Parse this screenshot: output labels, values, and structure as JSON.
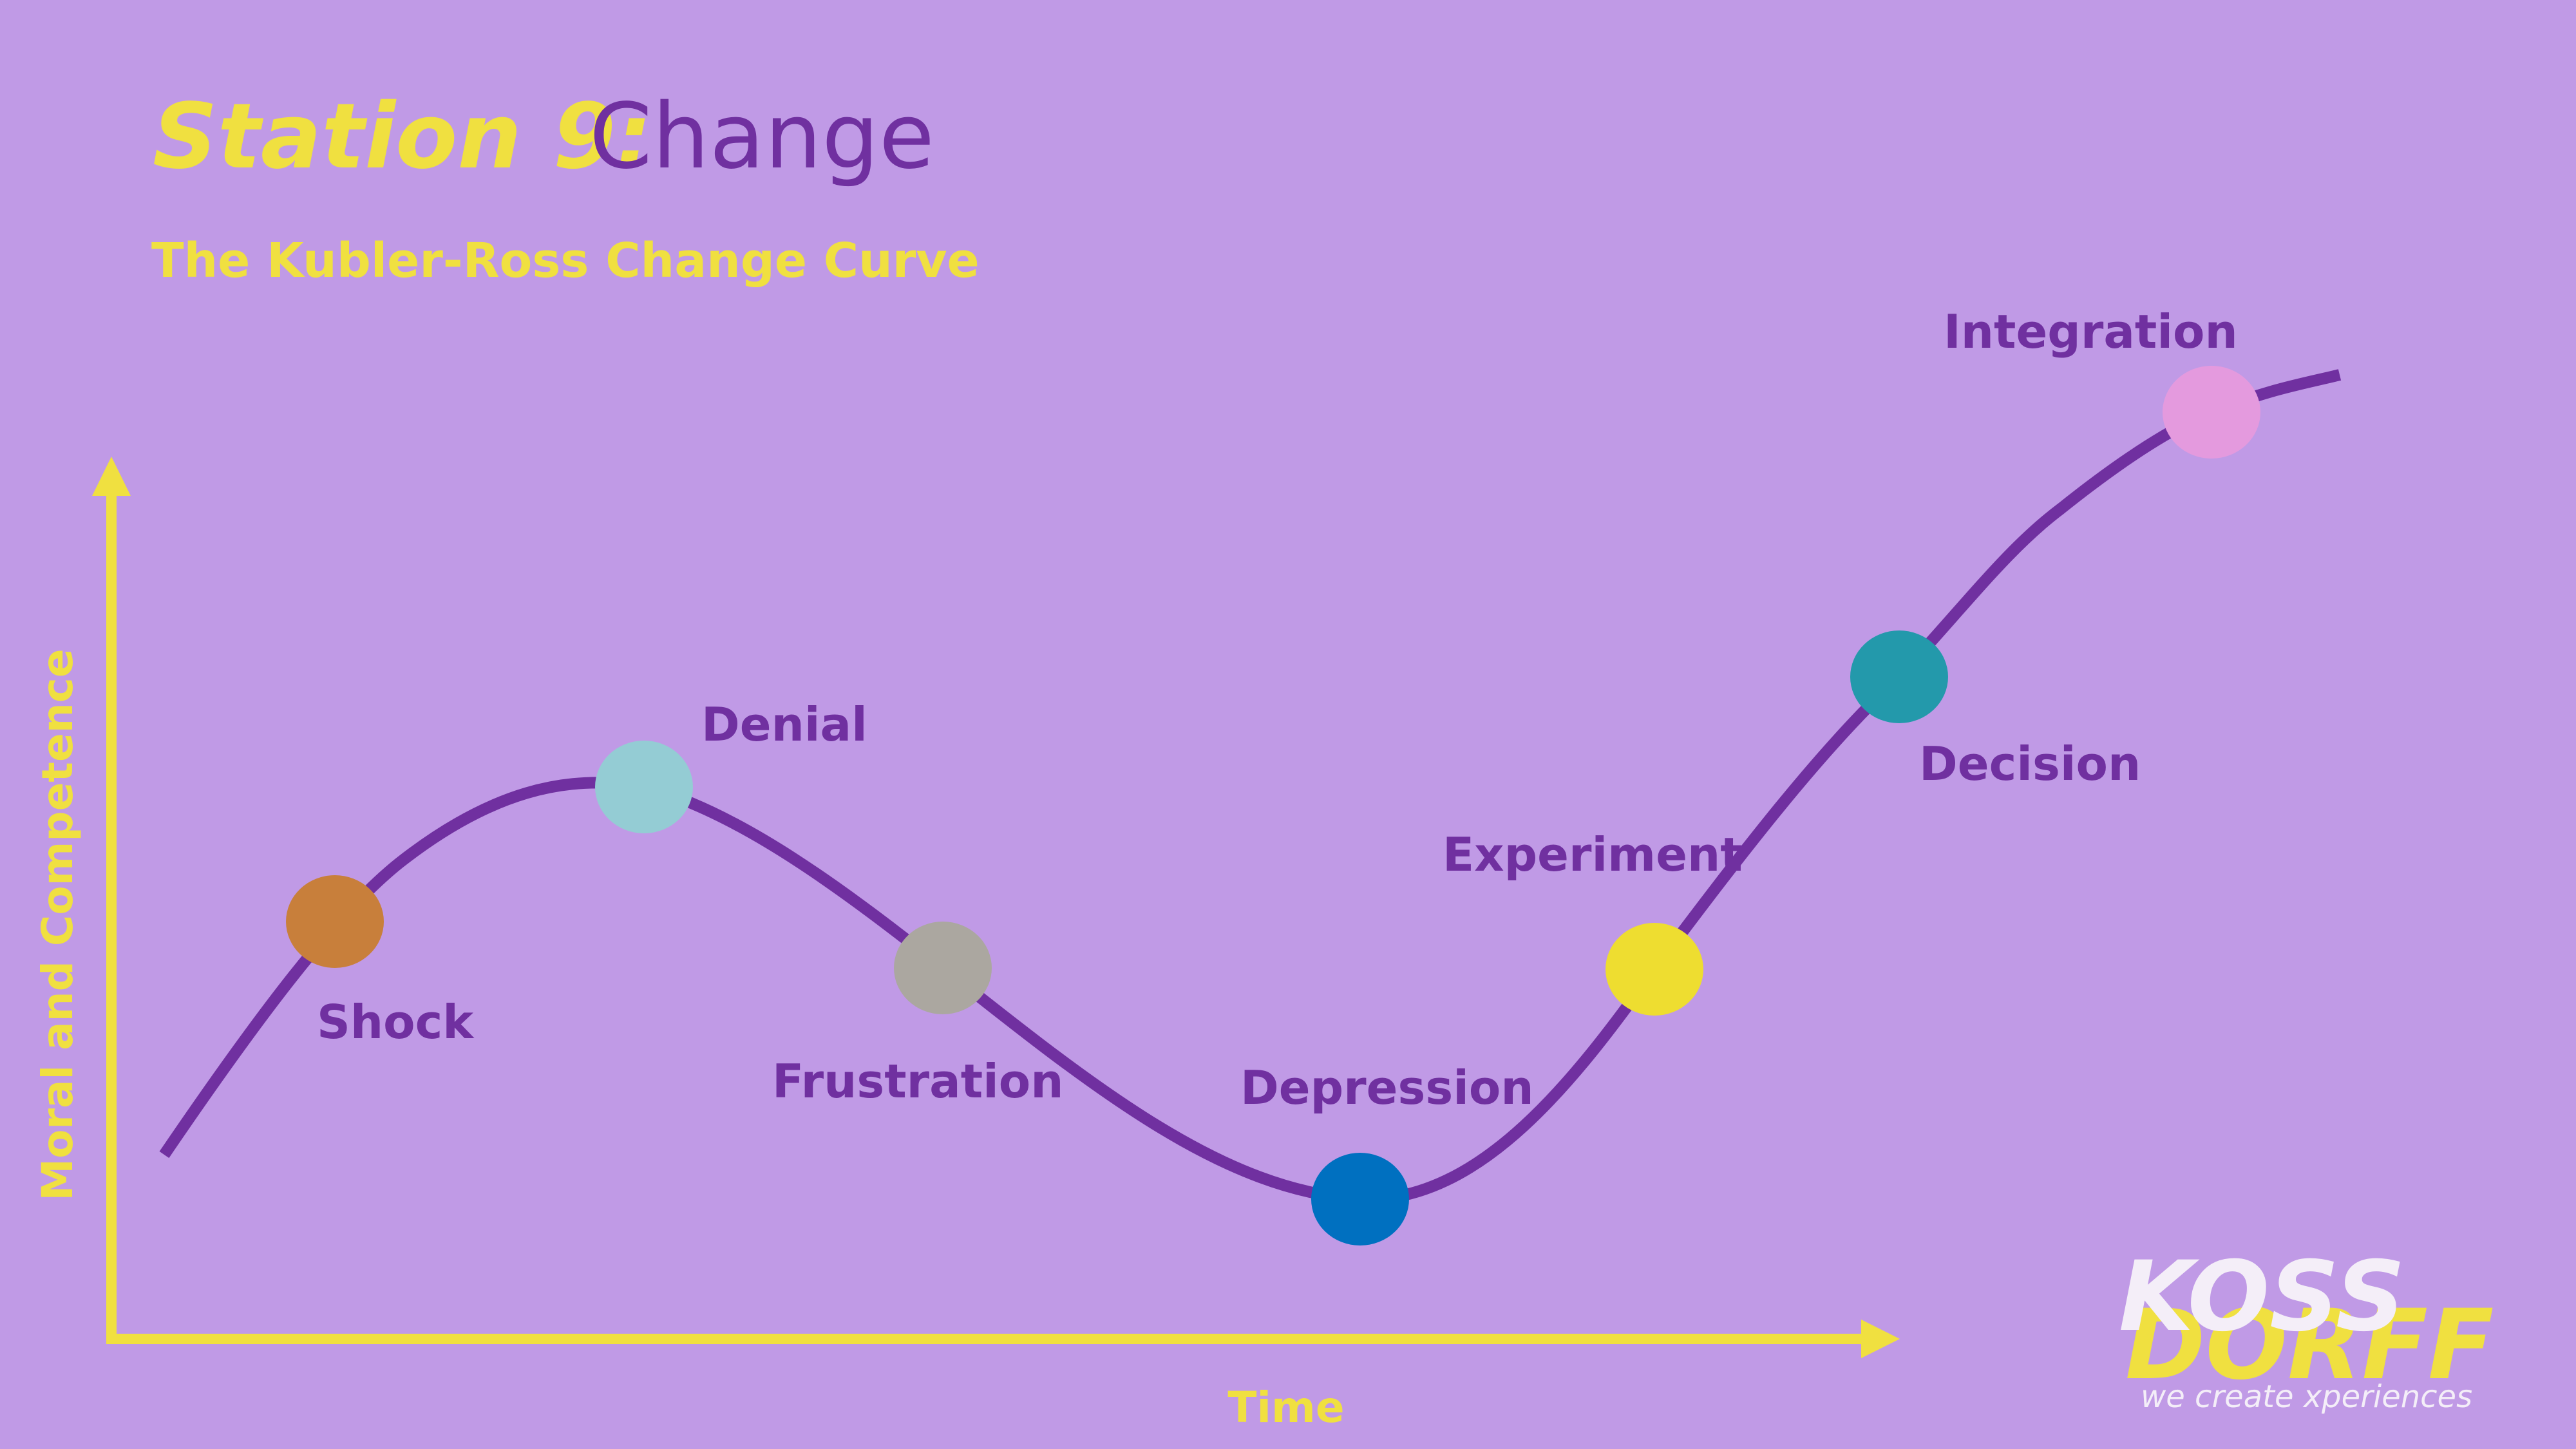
{
  "header": {
    "title_prefix": "Station 9:",
    "title": "Change",
    "subtitle": "The Kubler-Ross Change Curve"
  },
  "axes": {
    "y_label": "Moral and Competence",
    "x_label": "Time"
  },
  "nodes": [
    {
      "label": "Shock",
      "color": "#c87f3b"
    },
    {
      "label": "Denial",
      "color": "#94ccd4"
    },
    {
      "label": "Frustration",
      "color": "#aba7a0"
    },
    {
      "label": "Depression",
      "color": "#0070c0"
    },
    {
      "label": "Experiment",
      "color": "#eedd30"
    },
    {
      "label": "Decision",
      "color": "#2399ab"
    },
    {
      "label": "Integration",
      "color": "#e49ade"
    }
  ],
  "logo": {
    "top": "KOSS",
    "bottom": "DORFF",
    "tagline": "we create xperiences"
  }
}
